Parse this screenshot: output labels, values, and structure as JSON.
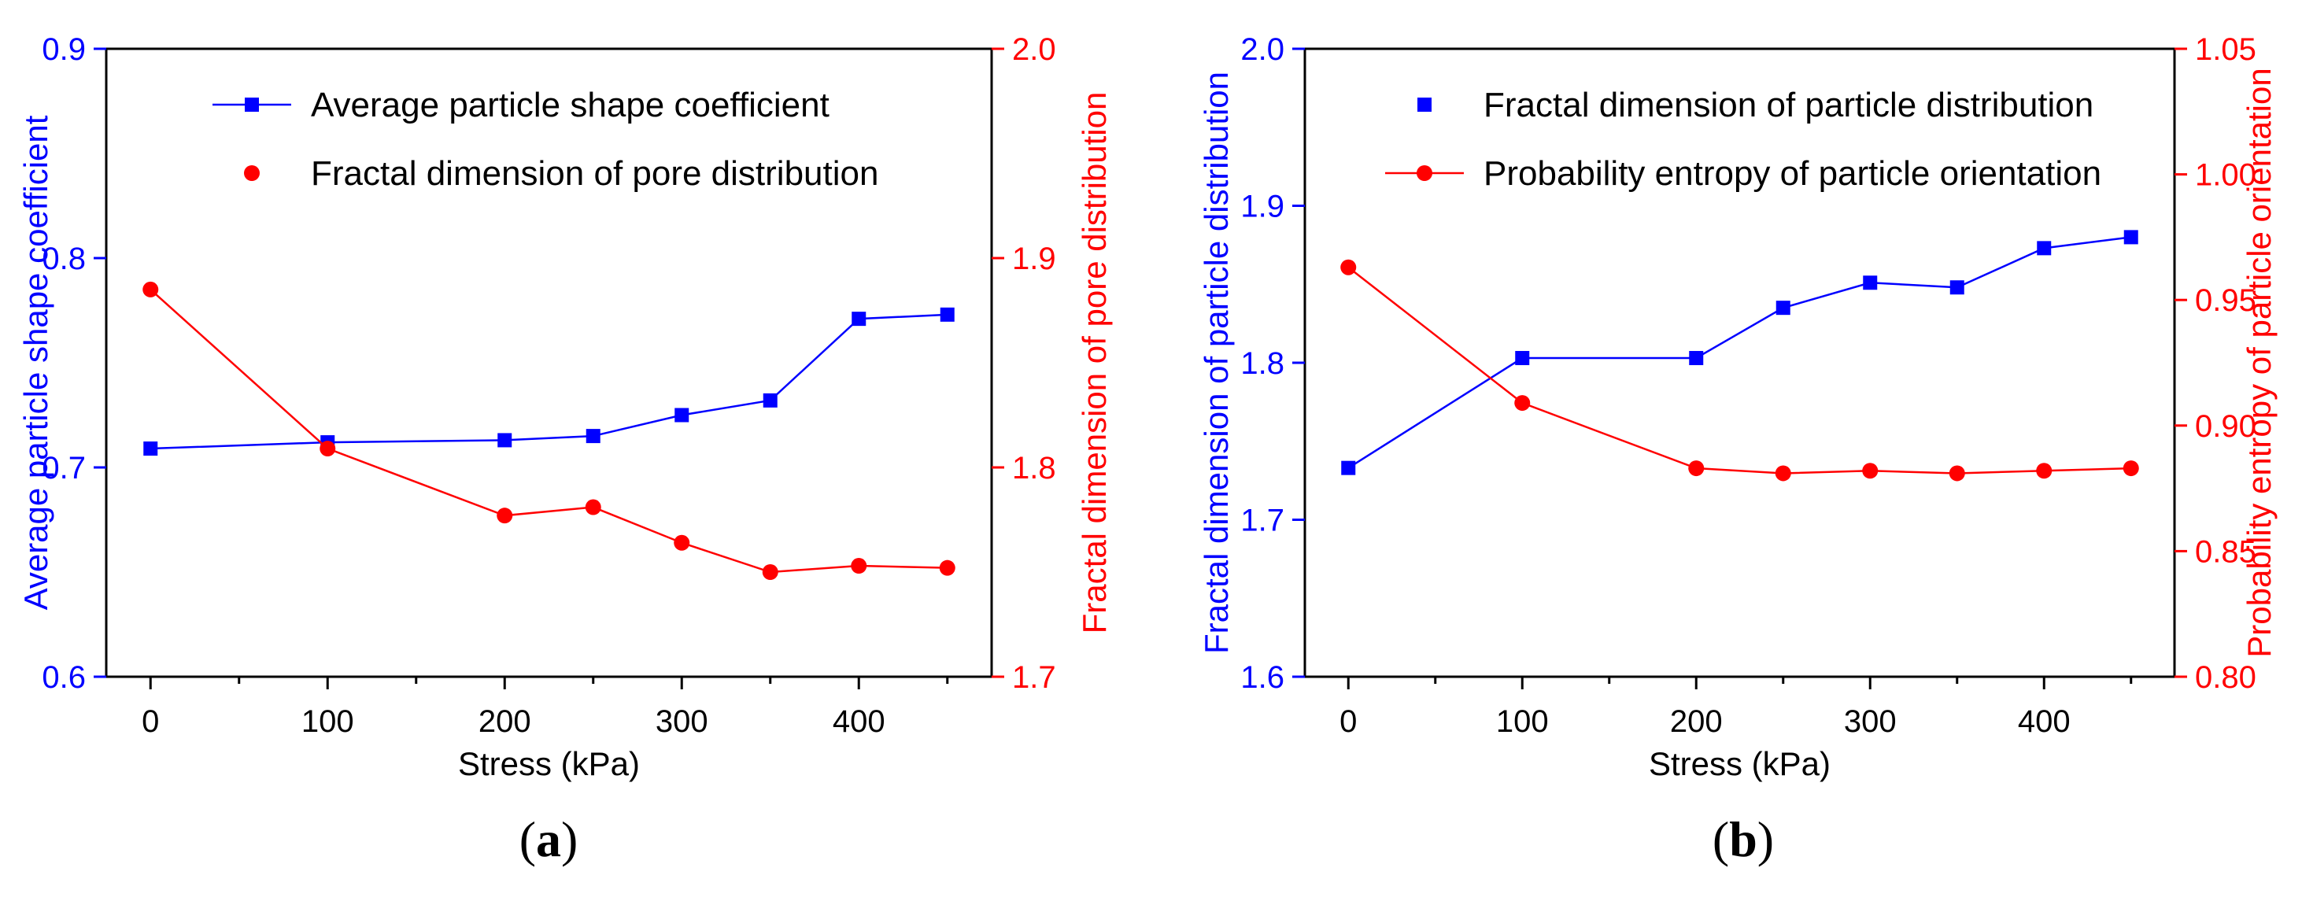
{
  "chart_data": [
    {
      "type": "line",
      "panel_label": {
        "open": "(",
        "letter": "a",
        "close": ")"
      },
      "xlabel": "Stress (kPa)",
      "xlim": [
        -25,
        475
      ],
      "xticks": [
        0,
        100,
        200,
        300,
        400
      ],
      "y_left": {
        "label": "Average particle shape coefficient",
        "lim": [
          0.6,
          0.9
        ],
        "ticks": [
          0.6,
          0.7,
          0.8,
          0.9
        ],
        "tick_labels": [
          "0.6",
          "0.7",
          "0.8",
          "0.9"
        ],
        "color": "#0000ff"
      },
      "y_right": {
        "label": "Fractal dimension of pore distribution",
        "lim": [
          1.7,
          2.0
        ],
        "ticks": [
          1.7,
          1.8,
          1.9,
          2.0
        ],
        "tick_labels": [
          "1.7",
          "1.8",
          "1.9",
          "2.0"
        ],
        "color": "#ff0000"
      },
      "legend_position": "top-right",
      "series": [
        {
          "name": "Average particle shape coefficient",
          "axis": "left",
          "color": "#0000ff",
          "marker": "square",
          "x": [
            0,
            100,
            200,
            250,
            300,
            350,
            400,
            450
          ],
          "y": [
            0.709,
            0.712,
            0.713,
            0.715,
            0.725,
            0.732,
            0.771,
            0.773
          ]
        },
        {
          "name": "Fractal dimension of pore distribution",
          "axis": "right",
          "color": "#ff0000",
          "marker": "circle",
          "x": [
            0,
            100,
            200,
            250,
            300,
            350,
            400,
            450
          ],
          "y": [
            1.885,
            1.809,
            1.777,
            1.781,
            1.764,
            1.75,
            1.753,
            1.752
          ]
        }
      ]
    },
    {
      "type": "line",
      "panel_label": {
        "open": "(",
        "letter": "b",
        "close": ")"
      },
      "xlabel": "Stress (kPa)",
      "xlim": [
        -25,
        475
      ],
      "xticks": [
        0,
        100,
        200,
        300,
        400
      ],
      "y_left": {
        "label": "Fractal dimension of particle distribution",
        "lim": [
          1.6,
          2.0
        ],
        "ticks": [
          1.6,
          1.7,
          1.8,
          1.9,
          2.0
        ],
        "tick_labels": [
          "1.6",
          "1.7",
          "1.8",
          "1.9",
          "2.0"
        ],
        "color": "#0000ff"
      },
      "y_right": {
        "label": "Probability entropy of particle orientation",
        "lim": [
          0.8,
          1.05
        ],
        "ticks": [
          0.8,
          0.85,
          0.9,
          0.95,
          1.0,
          1.05
        ],
        "tick_labels": [
          "0.80",
          "0.85",
          "0.90",
          "0.95",
          "1.00",
          "1.05"
        ],
        "color": "#ff0000"
      },
      "legend_position": "top-right",
      "series": [
        {
          "name": "Fractal dimension of particle distribution",
          "axis": "left",
          "color": "#0000ff",
          "marker": "square",
          "x": [
            0,
            100,
            200,
            250,
            300,
            350,
            400,
            450
          ],
          "y": [
            1.733,
            1.803,
            1.803,
            1.835,
            1.851,
            1.848,
            1.873,
            1.88
          ]
        },
        {
          "name": "Probability entropy of particle orientation",
          "axis": "right",
          "color": "#ff0000",
          "marker": "circle",
          "x": [
            0,
            100,
            200,
            250,
            300,
            350,
            400,
            450
          ],
          "y": [
            0.963,
            0.909,
            0.883,
            0.881,
            0.882,
            0.881,
            0.882,
            0.883
          ]
        }
      ]
    }
  ]
}
